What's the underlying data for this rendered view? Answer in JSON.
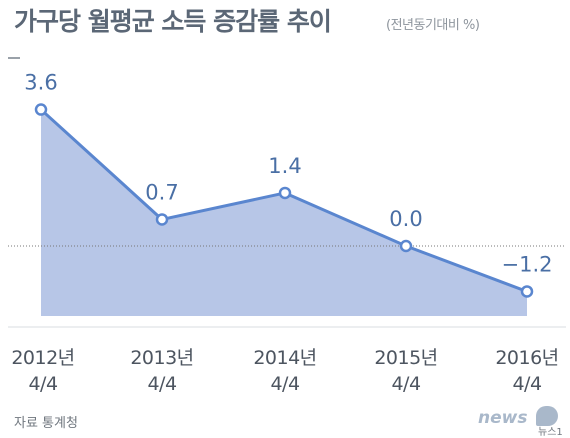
{
  "title": "가구당 월평균 소득 증감률 추이",
  "unit_note": "(전년동기대비 %)",
  "source": "자료  통계청",
  "logo": {
    "brand": "news1",
    "text": "news",
    "sub": "뉴스1"
  },
  "colors": {
    "area_fill": "#b7c6e7",
    "line": "#5a86cf",
    "marker_fill": "#ffffff",
    "zero_line": "#777777",
    "value_label": "#4a6fa5"
  },
  "chart_data": {
    "type": "area",
    "title": "가구당 월평균 소득 증감률 추이",
    "ylabel": "(전년동기대비 %)",
    "xlabel": "",
    "categories": [
      [
        "2012년",
        "4/4"
      ],
      [
        "2013년",
        "4/4"
      ],
      [
        "2014년",
        "4/4"
      ],
      [
        "2015년",
        "4/4"
      ],
      [
        "2016년",
        "4/4"
      ]
    ],
    "values": [
      3.6,
      0.7,
      1.4,
      0.0,
      -1.2
    ],
    "value_labels": [
      "3.6",
      "0.7",
      "1.4",
      "0.0",
      "−1.2"
    ],
    "ylim": [
      -1.7,
      3.8
    ],
    "grid": false,
    "legend": "none"
  }
}
